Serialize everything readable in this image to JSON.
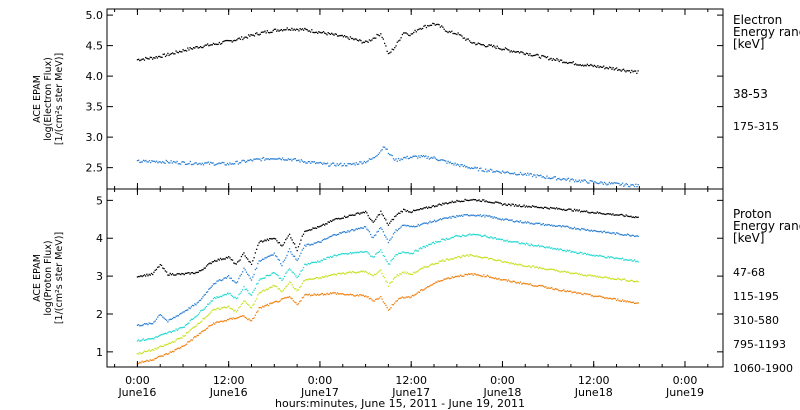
{
  "chart_data": [
    {
      "type": "line",
      "panel": "electron",
      "ylabel_lines": [
        "ACE EPAM",
        "log(Electron Flux)",
        "[1/(cm²s ster MeV)]"
      ],
      "ylim": [
        2.15,
        5.1
      ],
      "yticks": [
        "2.5",
        "3.0",
        "3.5",
        "4.0",
        "4.5",
        "5.0"
      ],
      "legend": {
        "title_lines": [
          "Electron",
          "Energy ranges",
          "[keV]"
        ],
        "placement": "right"
      },
      "series": [
        {
          "name": "38-53",
          "color": "#000000",
          "points": [
            [
              0,
              4.27
            ],
            [
              4,
              4.3
            ],
            [
              8,
              4.35
            ],
            [
              12,
              4.42
            ],
            [
              16,
              4.48
            ],
            [
              20,
              4.52
            ],
            [
              24,
              4.57
            ],
            [
              28,
              4.63
            ],
            [
              32,
              4.7
            ],
            [
              36,
              4.75
            ],
            [
              40,
              4.78
            ],
            [
              44,
              4.76
            ],
            [
              48,
              4.72
            ],
            [
              52,
              4.67
            ],
            [
              56,
              4.62
            ],
            [
              60,
              4.55
            ],
            [
              62,
              4.62
            ],
            [
              64,
              4.7
            ],
            [
              65,
              4.55
            ],
            [
              66,
              4.35
            ],
            [
              68,
              4.5
            ],
            [
              70,
              4.72
            ],
            [
              72,
              4.68
            ],
            [
              74,
              4.78
            ],
            [
              76,
              4.82
            ],
            [
              78,
              4.86
            ],
            [
              80,
              4.8
            ],
            [
              82,
              4.72
            ],
            [
              84,
              4.7
            ],
            [
              86,
              4.62
            ],
            [
              88,
              4.55
            ],
            [
              90,
              4.52
            ],
            [
              94,
              4.48
            ],
            [
              98,
              4.42
            ],
            [
              102,
              4.38
            ],
            [
              106,
              4.32
            ],
            [
              110,
              4.27
            ],
            [
              114,
              4.22
            ],
            [
              118,
              4.18
            ],
            [
              122,
              4.15
            ],
            [
              126,
              4.12
            ],
            [
              130,
              4.08
            ],
            [
              132,
              4.06
            ]
          ]
        },
        {
          "name": "175-315",
          "color": "#2a7fd4",
          "points": [
            [
              0,
              2.6
            ],
            [
              6,
              2.6
            ],
            [
              12,
              2.58
            ],
            [
              18,
              2.57
            ],
            [
              24,
              2.56
            ],
            [
              30,
              2.62
            ],
            [
              36,
              2.66
            ],
            [
              40,
              2.64
            ],
            [
              44,
              2.6
            ],
            [
              50,
              2.55
            ],
            [
              56,
              2.55
            ],
            [
              60,
              2.6
            ],
            [
              62,
              2.65
            ],
            [
              64,
              2.78
            ],
            [
              65,
              2.86
            ],
            [
              66,
              2.74
            ],
            [
              68,
              2.62
            ],
            [
              70,
              2.66
            ],
            [
              74,
              2.68
            ],
            [
              78,
              2.66
            ],
            [
              82,
              2.58
            ],
            [
              86,
              2.52
            ],
            [
              90,
              2.47
            ],
            [
              96,
              2.43
            ],
            [
              102,
              2.39
            ],
            [
              108,
              2.34
            ],
            [
              114,
              2.3
            ],
            [
              120,
              2.26
            ],
            [
              126,
              2.23
            ],
            [
              132,
              2.2
            ]
          ]
        }
      ]
    },
    {
      "type": "line",
      "panel": "proton",
      "ylabel_lines": [
        "ACE EPAM",
        "log(Proton Flux)",
        "[1/(cm²s ster MeV)]"
      ],
      "ylim": [
        0.6,
        5.3
      ],
      "yticks": [
        "1",
        "2",
        "3",
        "4",
        "5"
      ],
      "xlabel": "hours:minutes, June 15, 2011 - June 19, 2011",
      "xticks": [
        {
          "hours": 0,
          "time": "0:00",
          "date": "June16"
        },
        {
          "hours": 24,
          "time": "12:00",
          "date": "June16"
        },
        {
          "hours": 48,
          "time": "0:00",
          "date": "June17"
        },
        {
          "hours": 72,
          "time": "12:00",
          "date": "June17"
        },
        {
          "hours": 96,
          "time": "0:00",
          "date": "June18"
        },
        {
          "hours": 120,
          "time": "12:00",
          "date": "June18"
        },
        {
          "hours": 144,
          "time": "0:00",
          "date": "June19"
        }
      ],
      "legend": {
        "title_lines": [
          "Proton",
          "Energy ranges",
          "[keV]"
        ],
        "placement": "right"
      },
      "series": [
        {
          "name": "47-68",
          "color": "#000000",
          "points": [
            [
              0,
              3.0
            ],
            [
              4,
              3.05
            ],
            [
              6,
              3.3
            ],
            [
              8,
              3.05
            ],
            [
              12,
              3.05
            ],
            [
              16,
              3.1
            ],
            [
              20,
              3.4
            ],
            [
              24,
              3.5
            ],
            [
              26,
              3.3
            ],
            [
              28,
              3.6
            ],
            [
              30,
              3.3
            ],
            [
              32,
              3.9
            ],
            [
              36,
              4.0
            ],
            [
              38,
              3.8
            ],
            [
              40,
              4.1
            ],
            [
              42,
              3.7
            ],
            [
              44,
              4.2
            ],
            [
              48,
              4.3
            ],
            [
              52,
              4.5
            ],
            [
              56,
              4.6
            ],
            [
              60,
              4.7
            ],
            [
              62,
              4.4
            ],
            [
              64,
              4.7
            ],
            [
              66,
              4.35
            ],
            [
              68,
              4.6
            ],
            [
              70,
              4.75
            ],
            [
              72,
              4.7
            ],
            [
              76,
              4.8
            ],
            [
              80,
              4.9
            ],
            [
              84,
              4.98
            ],
            [
              88,
              5.02
            ],
            [
              92,
              4.98
            ],
            [
              96,
              4.9
            ],
            [
              102,
              4.85
            ],
            [
              108,
              4.8
            ],
            [
              114,
              4.75
            ],
            [
              120,
              4.68
            ],
            [
              126,
              4.62
            ],
            [
              132,
              4.55
            ]
          ]
        },
        {
          "name": "115-195",
          "color": "#2a7fd4",
          "points": [
            [
              0,
              1.7
            ],
            [
              4,
              1.75
            ],
            [
              6,
              2.0
            ],
            [
              8,
              1.8
            ],
            [
              12,
              2.05
            ],
            [
              16,
              2.3
            ],
            [
              20,
              2.8
            ],
            [
              24,
              3.0
            ],
            [
              26,
              2.8
            ],
            [
              28,
              3.2
            ],
            [
              30,
              2.9
            ],
            [
              32,
              3.4
            ],
            [
              36,
              3.6
            ],
            [
              38,
              3.3
            ],
            [
              40,
              3.7
            ],
            [
              42,
              3.4
            ],
            [
              44,
              3.8
            ],
            [
              48,
              3.9
            ],
            [
              52,
              4.1
            ],
            [
              56,
              4.2
            ],
            [
              60,
              4.3
            ],
            [
              62,
              4.0
            ],
            [
              64,
              4.3
            ],
            [
              66,
              3.9
            ],
            [
              68,
              4.2
            ],
            [
              70,
              4.35
            ],
            [
              72,
              4.3
            ],
            [
              76,
              4.4
            ],
            [
              80,
              4.5
            ],
            [
              84,
              4.58
            ],
            [
              88,
              4.62
            ],
            [
              92,
              4.58
            ],
            [
              96,
              4.5
            ],
            [
              102,
              4.42
            ],
            [
              108,
              4.35
            ],
            [
              114,
              4.28
            ],
            [
              120,
              4.2
            ],
            [
              126,
              4.12
            ],
            [
              132,
              4.06
            ]
          ]
        },
        {
          "name": "310-580",
          "color": "#22d8d0",
          "points": [
            [
              0,
              1.3
            ],
            [
              4,
              1.35
            ],
            [
              8,
              1.5
            ],
            [
              12,
              1.65
            ],
            [
              16,
              2.0
            ],
            [
              20,
              2.4
            ],
            [
              24,
              2.55
            ],
            [
              26,
              2.4
            ],
            [
              28,
              2.7
            ],
            [
              30,
              2.5
            ],
            [
              32,
              2.9
            ],
            [
              36,
              3.1
            ],
            [
              38,
              2.9
            ],
            [
              40,
              3.2
            ],
            [
              42,
              2.95
            ],
            [
              44,
              3.3
            ],
            [
              48,
              3.4
            ],
            [
              52,
              3.55
            ],
            [
              56,
              3.6
            ],
            [
              60,
              3.65
            ],
            [
              62,
              3.5
            ],
            [
              64,
              3.7
            ],
            [
              66,
              3.3
            ],
            [
              68,
              3.55
            ],
            [
              70,
              3.65
            ],
            [
              72,
              3.6
            ],
            [
              76,
              3.8
            ],
            [
              80,
              3.95
            ],
            [
              84,
              4.05
            ],
            [
              88,
              4.1
            ],
            [
              92,
              4.05
            ],
            [
              96,
              3.95
            ],
            [
              102,
              3.85
            ],
            [
              108,
              3.75
            ],
            [
              114,
              3.65
            ],
            [
              120,
              3.55
            ],
            [
              126,
              3.47
            ],
            [
              132,
              3.39
            ]
          ]
        },
        {
          "name": "795-1193",
          "color": "#c8e020",
          "points": [
            [
              0,
              0.95
            ],
            [
              4,
              1.05
            ],
            [
              8,
              1.2
            ],
            [
              12,
              1.4
            ],
            [
              16,
              1.75
            ],
            [
              20,
              2.1
            ],
            [
              24,
              2.2
            ],
            [
              26,
              2.05
            ],
            [
              28,
              2.35
            ],
            [
              30,
              2.15
            ],
            [
              32,
              2.55
            ],
            [
              36,
              2.75
            ],
            [
              38,
              2.6
            ],
            [
              40,
              2.85
            ],
            [
              42,
              2.6
            ],
            [
              44,
              2.9
            ],
            [
              48,
              2.95
            ],
            [
              52,
              3.05
            ],
            [
              56,
              3.1
            ],
            [
              60,
              3.12
            ],
            [
              62,
              3.0
            ],
            [
              64,
              3.15
            ],
            [
              66,
              2.75
            ],
            [
              68,
              3.0
            ],
            [
              70,
              3.1
            ],
            [
              72,
              3.05
            ],
            [
              76,
              3.25
            ],
            [
              80,
              3.4
            ],
            [
              84,
              3.5
            ],
            [
              88,
              3.55
            ],
            [
              92,
              3.48
            ],
            [
              96,
              3.38
            ],
            [
              102,
              3.28
            ],
            [
              108,
              3.18
            ],
            [
              114,
              3.08
            ],
            [
              120,
              3.0
            ],
            [
              126,
              2.93
            ],
            [
              132,
              2.85
            ]
          ]
        },
        {
          "name": "1060-1900",
          "color": "#f08010",
          "points": [
            [
              0,
              0.7
            ],
            [
              4,
              0.8
            ],
            [
              8,
              0.95
            ],
            [
              12,
              1.15
            ],
            [
              16,
              1.45
            ],
            [
              20,
              1.75
            ],
            [
              24,
              1.85
            ],
            [
              28,
              1.95
            ],
            [
              30,
              1.8
            ],
            [
              32,
              2.15
            ],
            [
              36,
              2.3
            ],
            [
              40,
              2.45
            ],
            [
              42,
              2.25
            ],
            [
              44,
              2.5
            ],
            [
              48,
              2.52
            ],
            [
              52,
              2.55
            ],
            [
              56,
              2.5
            ],
            [
              60,
              2.48
            ],
            [
              62,
              2.35
            ],
            [
              64,
              2.45
            ],
            [
              66,
              2.1
            ],
            [
              68,
              2.35
            ],
            [
              70,
              2.45
            ],
            [
              72,
              2.45
            ],
            [
              76,
              2.7
            ],
            [
              80,
              2.9
            ],
            [
              84,
              3.0
            ],
            [
              88,
              3.05
            ],
            [
              92,
              3.0
            ],
            [
              96,
              2.9
            ],
            [
              102,
              2.8
            ],
            [
              108,
              2.7
            ],
            [
              114,
              2.58
            ],
            [
              120,
              2.48
            ],
            [
              126,
              2.38
            ],
            [
              132,
              2.28
            ]
          ]
        }
      ]
    }
  ]
}
